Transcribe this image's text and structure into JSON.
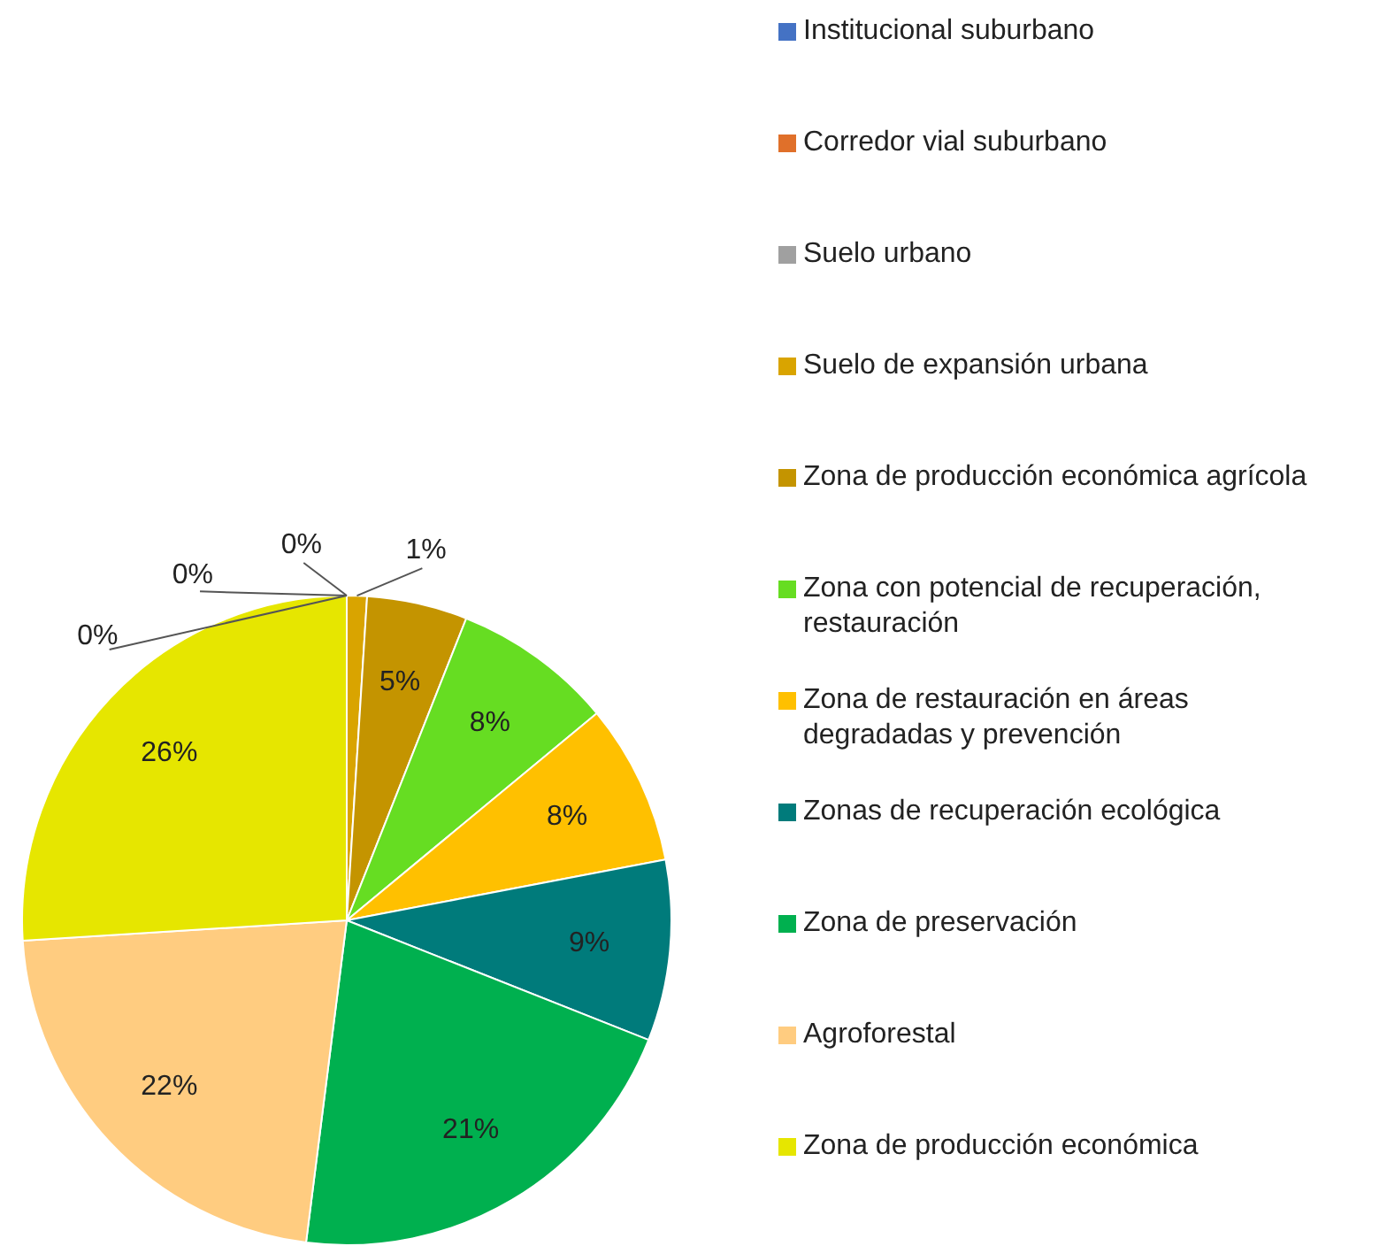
{
  "chart_data": {
    "type": "pie",
    "categories": [
      "Institucional suburbano",
      "Corredor vial suburbano",
      "Suelo urbano",
      "Suelo de expansión urbana",
      "Zona de producción económica agrícola",
      "Zona con potencial de recuperación, restauración",
      "Zona de restauración en áreas degradadas y prevención",
      "Zonas de recuperación ecológica",
      "Zona de preservación",
      "Agroforestal",
      "Zona de producción económica"
    ],
    "values": [
      0,
      0,
      0,
      1,
      5,
      8,
      8,
      9,
      21,
      22,
      26
    ],
    "value_labels": [
      "0%",
      "0%",
      "0%",
      "1%",
      "5%",
      "8%",
      "8%",
      "9%",
      "21%",
      "22%",
      "26%"
    ],
    "colors": [
      "#4472c4",
      "#e0702a",
      "#a0a0a0",
      "#d9a400",
      "#c49400",
      "#66dd22",
      "#ffc000",
      "#007b7b",
      "#00b04f",
      "#ffcc80",
      "#e6e600"
    ],
    "legend": "right"
  }
}
